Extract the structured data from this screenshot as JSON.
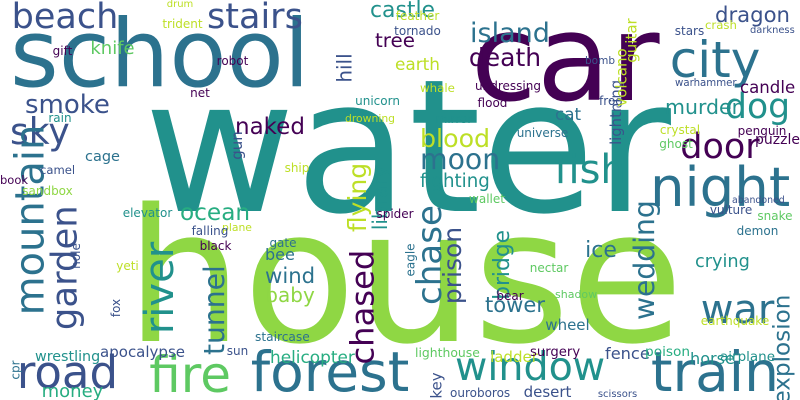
{
  "colors": {
    "background": "#ffffff",
    "purple": "#440154",
    "indigo": "#3b528b",
    "blue": "#2c728e",
    "teal": "#21918c",
    "green": "#27ad81",
    "lime": "#5ec962",
    "yellowgreen": "#8fd744",
    "yellow": "#bddf26"
  },
  "words": [
    {
      "text": "water",
      "color": "#21918c",
      "vertical": false
    },
    {
      "text": "house",
      "color": "#8fd744",
      "vertical": false
    },
    {
      "text": "car",
      "color": "#440154",
      "vertical": false
    },
    {
      "text": "school",
      "color": "#2c728e",
      "vertical": false
    },
    {
      "text": "forest",
      "color": "#2c728e",
      "vertical": false
    },
    {
      "text": "train",
      "color": "#2c728e",
      "vertical": false
    },
    {
      "text": "window",
      "color": "#21918c",
      "vertical": false
    },
    {
      "text": "fire",
      "color": "#5ec962",
      "vertical": false
    },
    {
      "text": "road",
      "color": "#3b528b",
      "vertical": false
    },
    {
      "text": "night",
      "color": "#2c728e",
      "vertical": false
    },
    {
      "text": "city",
      "color": "#2c728e",
      "vertical": false
    },
    {
      "text": "dog",
      "color": "#21918c",
      "vertical": false
    },
    {
      "text": "door",
      "color": "#440154",
      "vertical": false
    },
    {
      "text": "war",
      "color": "#2c728e",
      "vertical": false
    },
    {
      "text": "beach",
      "color": "#3b528b",
      "vertical": false
    },
    {
      "text": "stairs",
      "color": "#3b528b",
      "vertical": false
    },
    {
      "text": "sky",
      "color": "#3b528b",
      "vertical": false
    },
    {
      "text": "fish",
      "color": "#21918c",
      "vertical": false
    },
    {
      "text": "mountain",
      "color": "#2c728e",
      "vertical": true
    },
    {
      "text": "garden",
      "color": "#3b528b",
      "vertical": true
    },
    {
      "text": "river",
      "color": "#21918c",
      "vertical": true
    },
    {
      "text": "chased",
      "color": "#440154",
      "vertical": true
    },
    {
      "text": "chase",
      "color": "#2c728e",
      "vertical": true
    },
    {
      "text": "tunnel",
      "color": "#2c728e",
      "vertical": true
    },
    {
      "text": "flying",
      "color": "#bddf26",
      "vertical": true
    },
    {
      "text": "wedding",
      "color": "#2c728e",
      "vertical": true
    },
    {
      "text": "tower",
      "color": "#2c728e",
      "vertical": false
    },
    {
      "text": "moon",
      "color": "#2c728e",
      "vertical": false
    },
    {
      "text": "blood",
      "color": "#bddf26",
      "vertical": false
    },
    {
      "text": "death",
      "color": "#440154",
      "vertical": false
    },
    {
      "text": "island",
      "color": "#2c728e",
      "vertical": false
    },
    {
      "text": "dragon",
      "color": "#3b528b",
      "vertical": false
    },
    {
      "text": "murder",
      "color": "#21918c",
      "vertical": false
    },
    {
      "text": "naked",
      "color": "#440154",
      "vertical": false
    },
    {
      "text": "ocean",
      "color": "#27ad81",
      "vertical": false
    },
    {
      "text": "smoke",
      "color": "#3b528b",
      "vertical": false
    },
    {
      "text": "prison",
      "color": "#3b528b",
      "vertical": true
    },
    {
      "text": "bridge",
      "color": "#21918c",
      "vertical": true
    },
    {
      "text": "library",
      "color": "#21918c",
      "vertical": true
    },
    {
      "text": "hill",
      "color": "#3b528b",
      "vertical": true
    },
    {
      "text": "explosion",
      "color": "#2c728e",
      "vertical": true
    },
    {
      "text": "castle",
      "color": "#21918c",
      "vertical": false
    },
    {
      "text": "tree",
      "color": "#440154",
      "vertical": false
    },
    {
      "text": "wind",
      "color": "#2c728e",
      "vertical": false
    },
    {
      "text": "bee",
      "color": "#2c728e",
      "vertical": false
    },
    {
      "text": "baby",
      "color": "#8fd744",
      "vertical": false
    },
    {
      "text": "ice",
      "color": "#2c728e",
      "vertical": false
    },
    {
      "text": "crying",
      "color": "#21918c",
      "vertical": false
    },
    {
      "text": "candle",
      "color": "#440154",
      "vertical": false
    },
    {
      "text": "puzzle",
      "color": "#440154",
      "vertical": false
    },
    {
      "text": "helicopter",
      "color": "#27ad81",
      "vertical": false
    },
    {
      "text": "fighting",
      "color": "#21918c",
      "vertical": false
    },
    {
      "text": "cat",
      "color": "#2c728e",
      "vertical": false
    },
    {
      "text": "cage",
      "color": "#2c728e",
      "vertical": false
    },
    {
      "text": "knife",
      "color": "#5ec962",
      "vertical": false
    },
    {
      "text": "earth",
      "color": "#bddf26",
      "vertical": false
    },
    {
      "text": "fence",
      "color": "#3b528b",
      "vertical": false
    },
    {
      "text": "horse",
      "color": "#21918c",
      "vertical": false
    },
    {
      "text": "money",
      "color": "#27ad81",
      "vertical": false
    },
    {
      "text": "desert",
      "color": "#3b528b",
      "vertical": false
    },
    {
      "text": "key",
      "color": "#3b528b",
      "vertical": true
    },
    {
      "text": "gun",
      "color": "#3b528b",
      "vertical": true
    },
    {
      "text": "wrestling",
      "color": "#21918c",
      "vertical": false
    },
    {
      "text": "apocalypse",
      "color": "#3b528b",
      "vertical": false
    },
    {
      "text": "ladder",
      "color": "#bddf26",
      "vertical": false
    },
    {
      "text": "wheel",
      "color": "#2c728e",
      "vertical": false
    },
    {
      "text": "lighthouse",
      "color": "#5ec962",
      "vertical": false
    },
    {
      "text": "surgery",
      "color": "#440154",
      "vertical": false
    },
    {
      "text": "poison",
      "color": "#27ad81",
      "vertical": false
    },
    {
      "text": "airplane",
      "color": "#21918c",
      "vertical": false
    },
    {
      "text": "scissors",
      "color": "#3b528b",
      "vertical": false
    },
    {
      "text": "ouroboros",
      "color": "#3b528b",
      "vertical": false
    },
    {
      "text": "sun",
      "color": "#3b528b",
      "vertical": false
    },
    {
      "text": "staircase",
      "color": "#2c728e",
      "vertical": false
    },
    {
      "text": "earthquake",
      "color": "#bddf26",
      "vertical": false
    },
    {
      "text": "bear",
      "color": "#440154",
      "vertical": false
    },
    {
      "text": "shadow",
      "color": "#5ec962",
      "vertical": false
    },
    {
      "text": "nectar",
      "color": "#5ec962",
      "vertical": false
    },
    {
      "text": "vulture",
      "color": "#3b528b",
      "vertical": false
    },
    {
      "text": "demon",
      "color": "#2c728e",
      "vertical": false
    },
    {
      "text": "snake",
      "color": "#5ec962",
      "vertical": false
    },
    {
      "text": "abandoned",
      "color": "#3b528b",
      "vertical": false
    },
    {
      "text": "penguin",
      "color": "#440154",
      "vertical": false
    },
    {
      "text": "crystal",
      "color": "#bddf26",
      "vertical": false
    },
    {
      "text": "ghost",
      "color": "#5ec962",
      "vertical": false
    },
    {
      "text": "lightning",
      "color": "#3b528b",
      "vertical": true
    },
    {
      "text": "universe",
      "color": "#2c728e",
      "vertical": false
    },
    {
      "text": "frog",
      "color": "#3b528b",
      "vertical": false
    },
    {
      "text": "volcano",
      "color": "#bddf26",
      "vertical": true
    },
    {
      "text": "flood",
      "color": "#440154",
      "vertical": false
    },
    {
      "text": "warhammer",
      "color": "#3b528b",
      "vertical": false
    },
    {
      "text": "bomb",
      "color": "#3b528b",
      "vertical": false
    },
    {
      "text": "guitar",
      "color": "#bddf26",
      "vertical": true
    },
    {
      "text": "stars",
      "color": "#3b528b",
      "vertical": false
    },
    {
      "text": "crash",
      "color": "#bddf26",
      "vertical": false
    },
    {
      "text": "darkness",
      "color": "#3b528b",
      "vertical": false
    },
    {
      "text": "whale",
      "color": "#bddf26",
      "vertical": false
    },
    {
      "text": "mirror",
      "color": "#21918c",
      "vertical": false
    },
    {
      "text": "drowning",
      "color": "#bddf26",
      "vertical": false
    },
    {
      "text": "unicorn",
      "color": "#21918c",
      "vertical": false
    },
    {
      "text": "undressing",
      "color": "#440154",
      "vertical": false
    },
    {
      "text": "tornado",
      "color": "#3b528b",
      "vertical": false
    },
    {
      "text": "feather",
      "color": "#bddf26",
      "vertical": false
    },
    {
      "text": "robot",
      "color": "#440154",
      "vertical": false
    },
    {
      "text": "net",
      "color": "#440154",
      "vertical": false
    },
    {
      "text": "trident",
      "color": "#bddf26",
      "vertical": false
    },
    {
      "text": "gift",
      "color": "#440154",
      "vertical": false
    },
    {
      "text": "rain",
      "color": "#21918c",
      "vertical": false
    },
    {
      "text": "book",
      "color": "#440154",
      "vertical": false
    },
    {
      "text": "camel",
      "color": "#3b528b",
      "vertical": false
    },
    {
      "text": "sandbox",
      "color": "#8fd744",
      "vertical": false
    },
    {
      "text": "elevator",
      "color": "#21918c",
      "vertical": false
    },
    {
      "text": "plane",
      "color": "#bddf26",
      "vertical": false
    },
    {
      "text": "falling",
      "color": "#3b528b",
      "vertical": false
    },
    {
      "text": "black",
      "color": "#440154",
      "vertical": false
    },
    {
      "text": "gate",
      "color": "#2c728e",
      "vertical": false
    },
    {
      "text": "eagle",
      "color": "#2c728e",
      "vertical": true
    },
    {
      "text": "spider",
      "color": "#440154",
      "vertical": false
    },
    {
      "text": "wallet",
      "color": "#5ec962",
      "vertical": false
    },
    {
      "text": "ship",
      "color": "#bddf26",
      "vertical": false
    },
    {
      "text": "hole",
      "color": "#3b528b",
      "vertical": true
    },
    {
      "text": "yeti",
      "color": "#bddf26",
      "vertical": false
    },
    {
      "text": "fox",
      "color": "#3b528b",
      "vertical": true
    },
    {
      "text": "cpr",
      "color": "#2c728e",
      "vertical": true
    },
    {
      "text": "drum",
      "color": "#bddf26",
      "vertical": false
    }
  ]
}
